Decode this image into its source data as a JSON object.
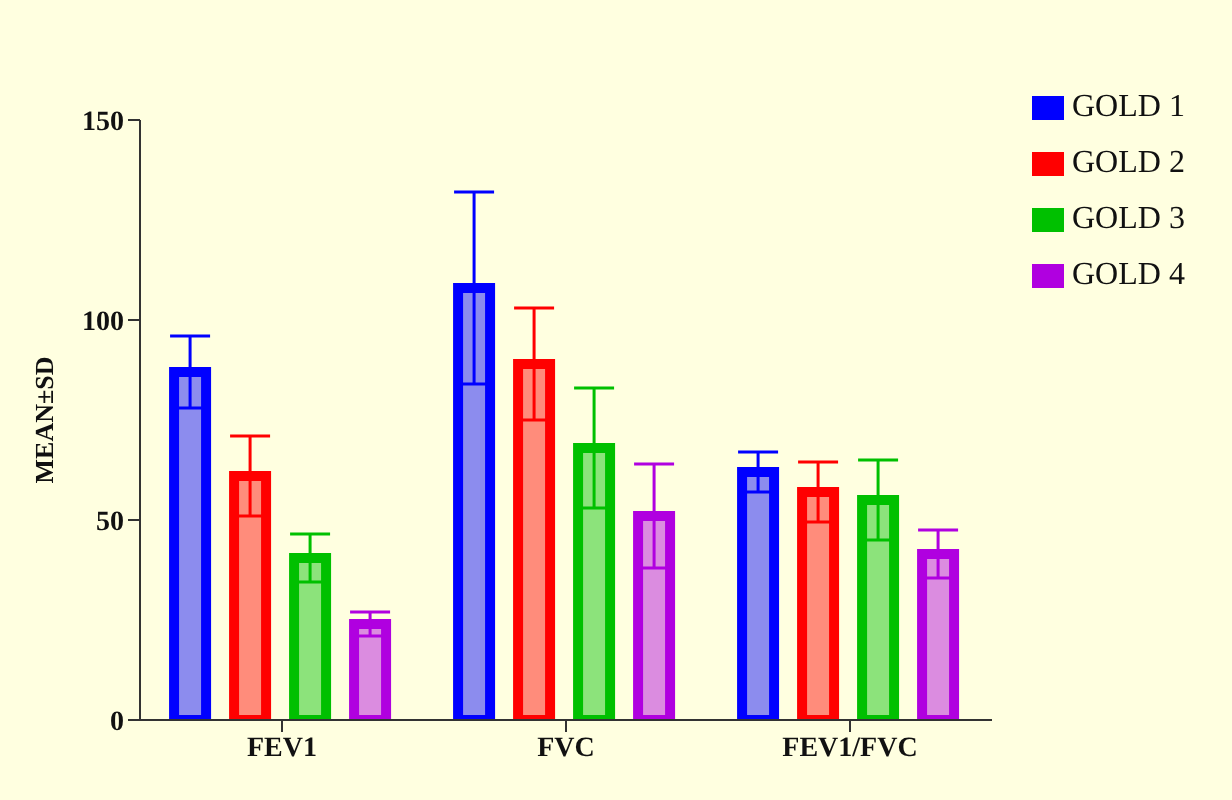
{
  "chart_data": {
    "type": "bar",
    "ylabel": "MEAN±SD",
    "categories": [
      "FEV1",
      "FVC",
      "FEV1/FVC"
    ],
    "series": [
      {
        "name": "GOLD 1",
        "color": "#0000ff",
        "values": [
          87,
          108,
          62
        ],
        "errors": [
          9,
          24,
          5
        ]
      },
      {
        "name": "GOLD 2",
        "color": "#ff0000",
        "values": [
          61,
          89,
          57
        ],
        "errors": [
          10,
          14,
          7.5
        ]
      },
      {
        "name": "GOLD 3",
        "color": "#00c000",
        "values": [
          40.5,
          68,
          55
        ],
        "errors": [
          6,
          15,
          10
        ]
      },
      {
        "name": "GOLD 4",
        "color": "#b000e0",
        "values": [
          24,
          51,
          41.5
        ],
        "errors": [
          3,
          13,
          6
        ]
      }
    ],
    "ylim": [
      0,
      150
    ],
    "yticks": [
      0,
      50,
      100,
      150
    ],
    "grid": false,
    "legend": "top right"
  }
}
